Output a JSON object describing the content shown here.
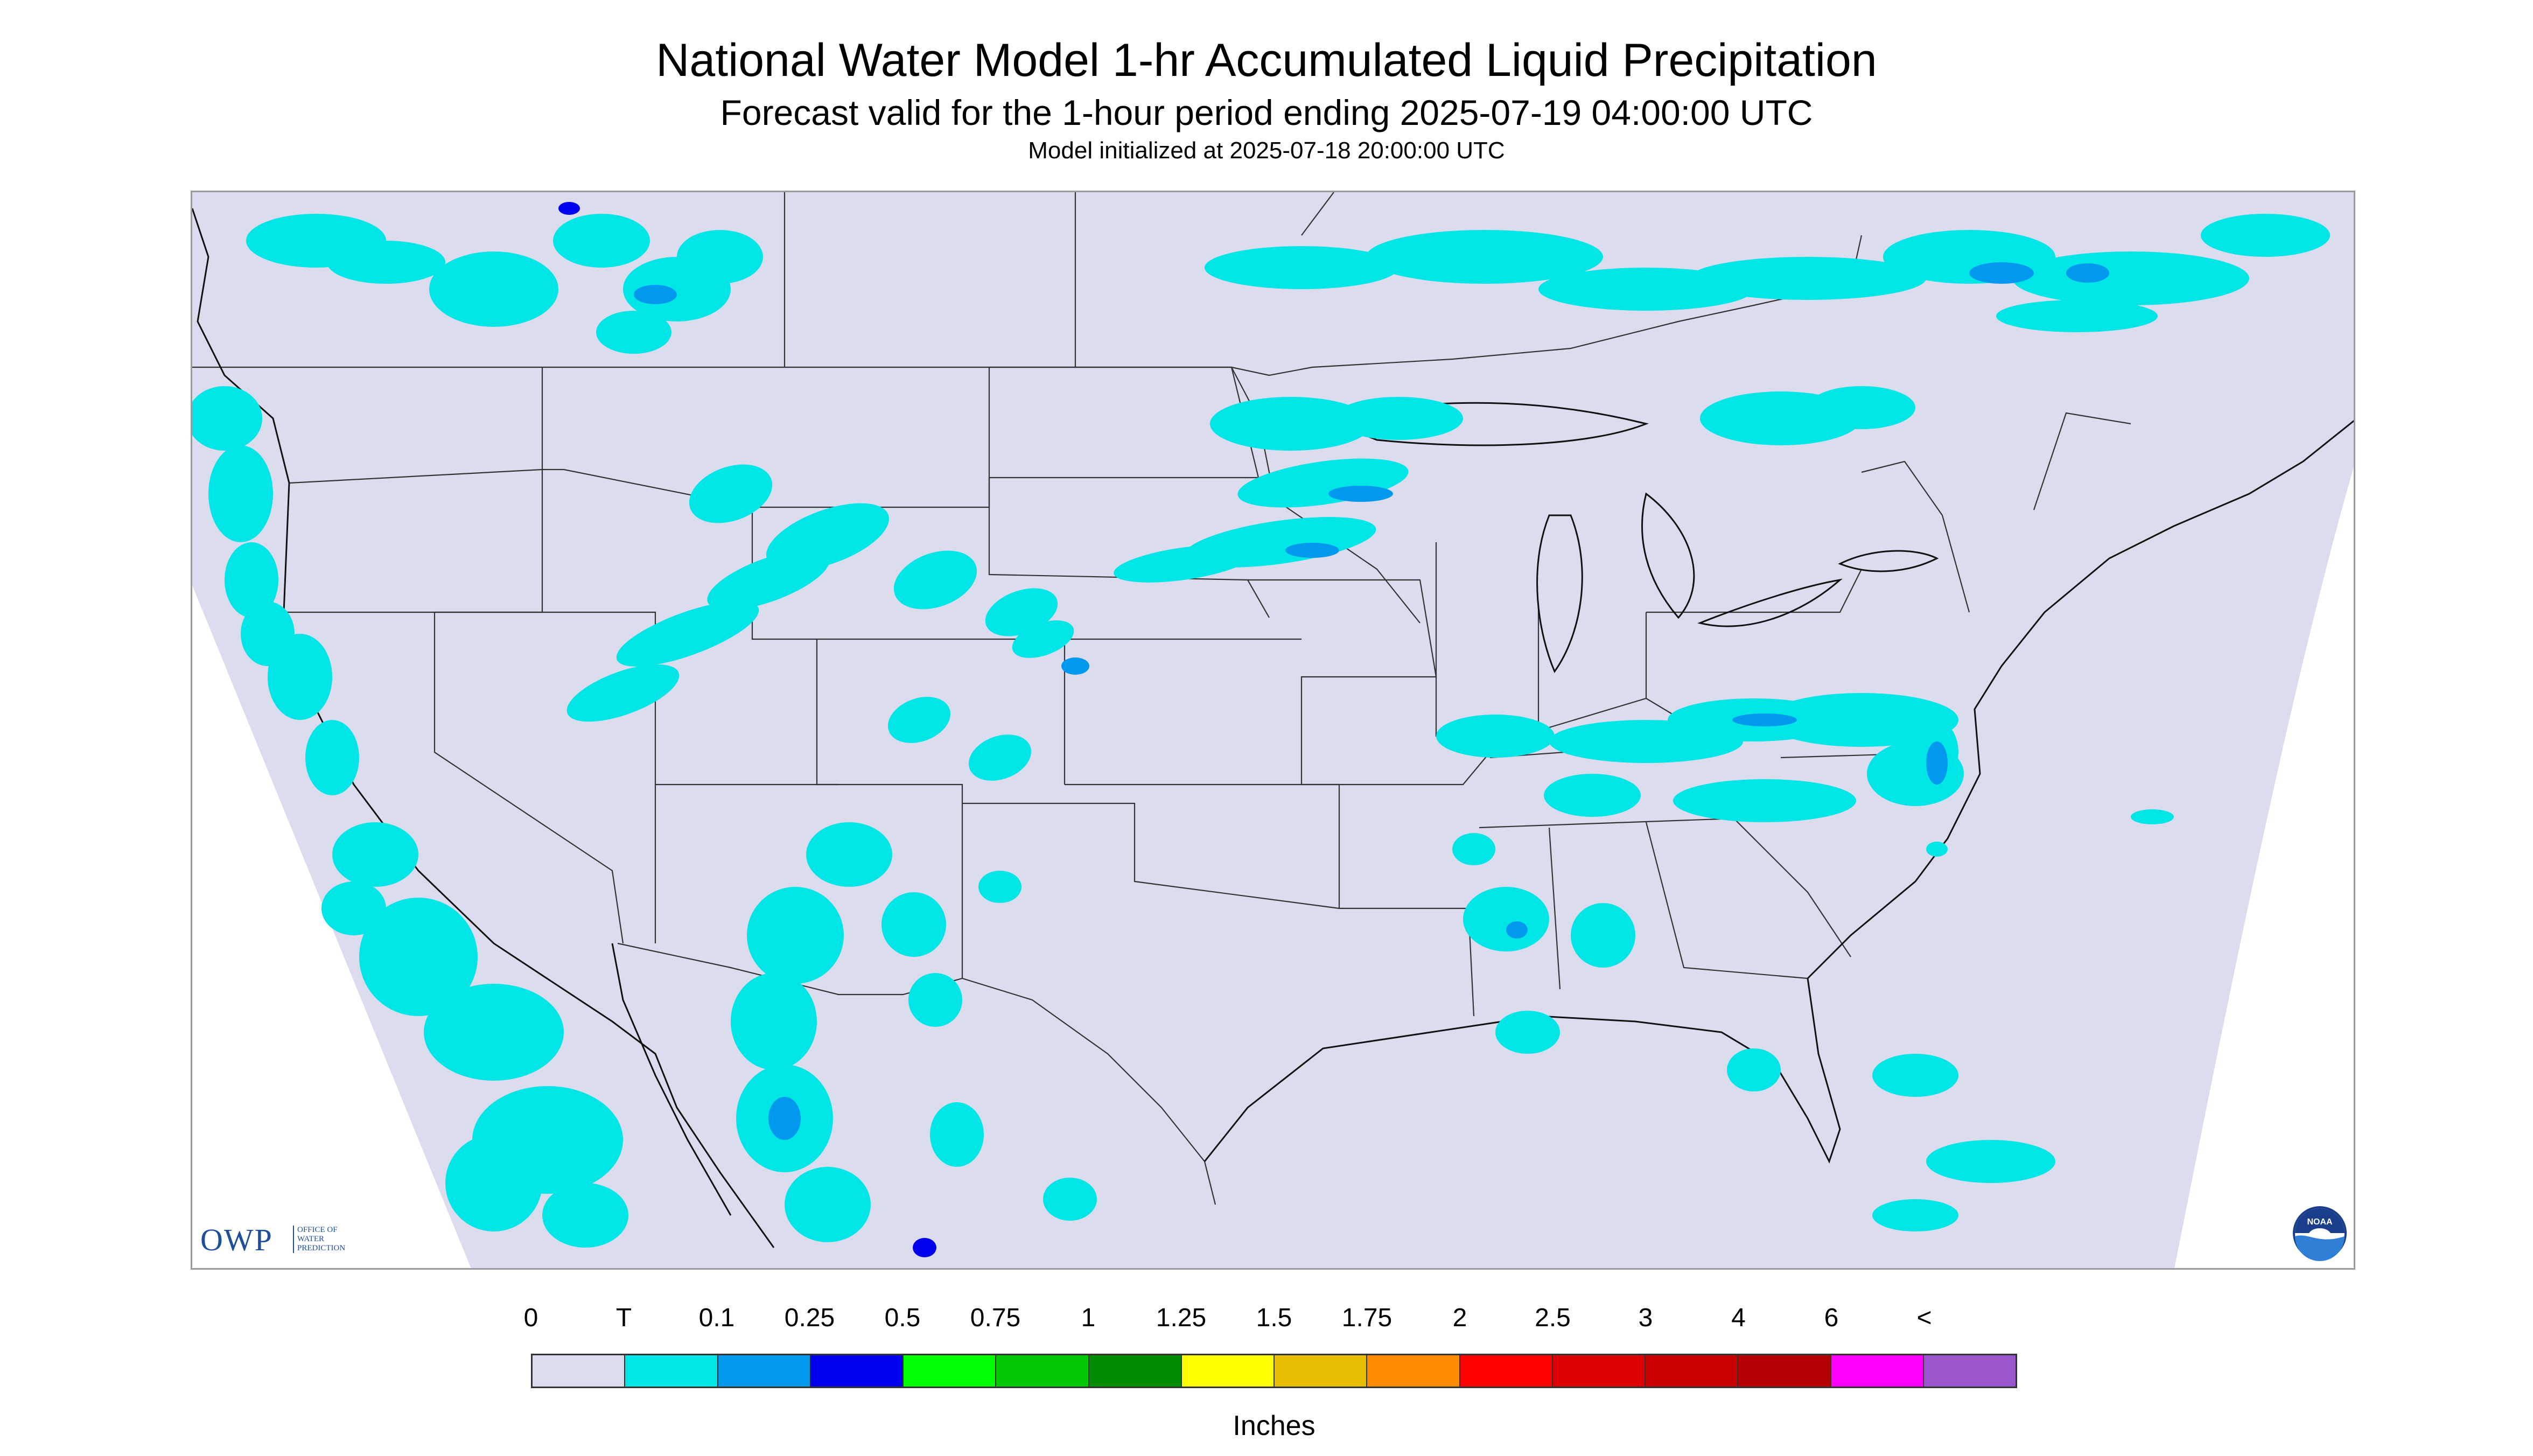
{
  "header": {
    "title": "National Water Model 1-hr Accumulated Liquid Precipitation",
    "subtitle": "Forecast valid for the 1-hour period ending 2025-07-19 04:00:00 UTC",
    "init": "Model initialized at 2025-07-18 20:00:00 UTC"
  },
  "logos": {
    "owp_main": "OWP",
    "owp_sub_lines": [
      "OFFICE OF",
      "WATER",
      "PREDICTION"
    ],
    "noaa": "NOAA"
  },
  "map": {
    "region": "CONUS",
    "background_color": "#dcdcef",
    "land_color": "#dcdcef",
    "outside_domain_color": "#ffffff",
    "border_color": "#333333"
  },
  "legend": {
    "labels": [
      "0",
      "T",
      "0.1",
      "0.25",
      "0.5",
      "0.75",
      "1",
      "1.25",
      "1.5",
      "1.75",
      "2",
      "2.5",
      "3",
      "4",
      "6",
      "<"
    ],
    "colors": [
      "#dcdcef",
      "#00e5e5",
      "#0099ee",
      "#0000ee",
      "#00ff00",
      "#00c800",
      "#008c00",
      "#ffff00",
      "#e6c000",
      "#ff8c00",
      "#ff0000",
      "#dd0000",
      "#c80000",
      "#b40000",
      "#ff00ff",
      "#9955cc"
    ],
    "units": "Inches"
  },
  "precip_colors": {
    "trace": "#00e5e5",
    "light": "#0099ee",
    "moderate": "#0000ee",
    "heavy": "#00c800"
  }
}
